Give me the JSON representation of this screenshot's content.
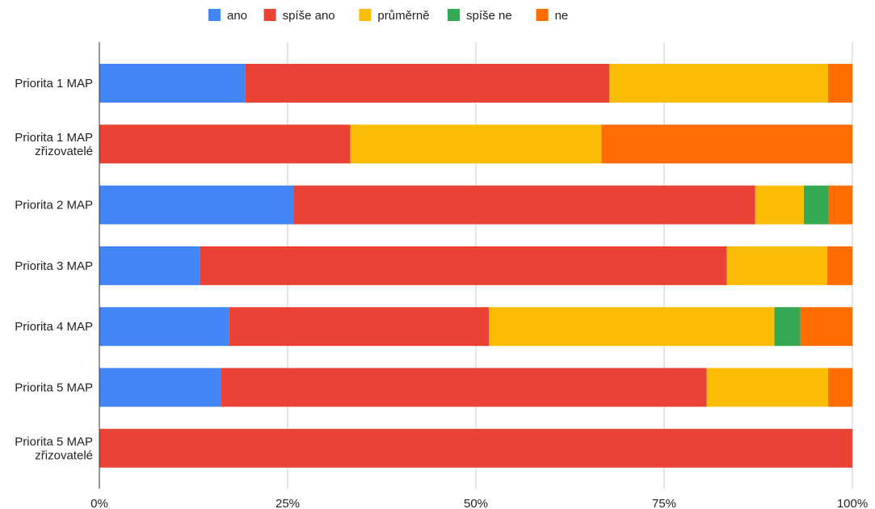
{
  "chart_data": {
    "type": "bar",
    "orientation": "horizontal",
    "stacked": "percent",
    "categories": [
      [
        "Priorita 1 MAP"
      ],
      [
        "Priorita 1 MAP",
        "zřizovatelé"
      ],
      [
        "Priorita 2 MAP"
      ],
      [
        "Priorita 3 MAP"
      ],
      [
        "Priorita 4 MAP"
      ],
      [
        "Priorita 5 MAP"
      ],
      [
        "Priorita 5 MAP",
        "zřizovatelé"
      ]
    ],
    "series": [
      {
        "name": "ano",
        "color": "#4285F4",
        "values": [
          19.35,
          0,
          25.81,
          13.33,
          17.24,
          16.13,
          0
        ]
      },
      {
        "name": "spíše ano",
        "color": "#EA4335",
        "values": [
          48.39,
          33.33,
          61.29,
          70.0,
          34.48,
          64.52,
          100
        ]
      },
      {
        "name": "průměrně",
        "color": "#FBBC04",
        "values": [
          29.03,
          33.33,
          6.45,
          13.33,
          37.93,
          16.13,
          0
        ]
      },
      {
        "name": "spíše ne",
        "color": "#34A853",
        "values": [
          0,
          0,
          3.23,
          0,
          3.45,
          0,
          0
        ]
      },
      {
        "name": "ne",
        "color": "#FF6D01",
        "values": [
          3.23,
          33.34,
          3.22,
          3.34,
          6.9,
          3.22,
          0
        ]
      }
    ],
    "xticks": [
      "0%",
      "25%",
      "50%",
      "75%",
      "100%"
    ],
    "xlim": [
      0,
      100
    ],
    "grid": true,
    "legend_position": "top"
  }
}
